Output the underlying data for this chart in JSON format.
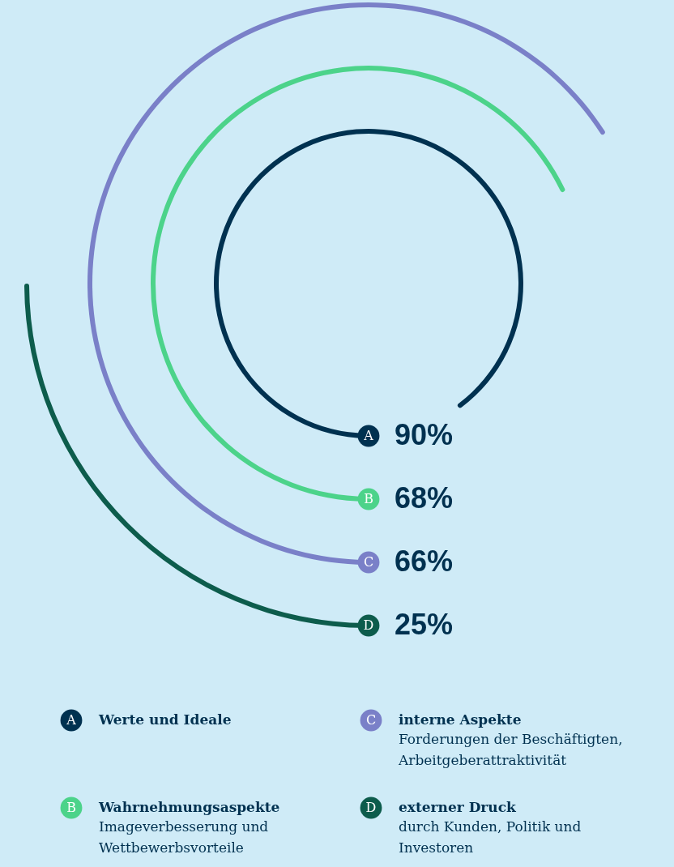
{
  "chart_data": {
    "type": "other",
    "categories": [
      "A",
      "B",
      "C",
      "D"
    ],
    "values": [
      90,
      68,
      66,
      25
    ],
    "colors": [
      "#003150",
      "#4cd38a",
      "#7a80c8",
      "#0d5c4c"
    ],
    "value_labels": [
      "90%",
      "68%",
      "66%",
      "25%"
    ],
    "annotations": [
      "Werte und Ideale",
      "Wahrnehmungsaspekte",
      "Imageverbesserung und Wettbewerbsvorteile",
      "interne Aspekte",
      "Forderungen der Beschäftigten, Arbeitgeberattraktivität",
      "externer Druck",
      "durch Kunden, Politik und Investoren"
    ]
  }
}
